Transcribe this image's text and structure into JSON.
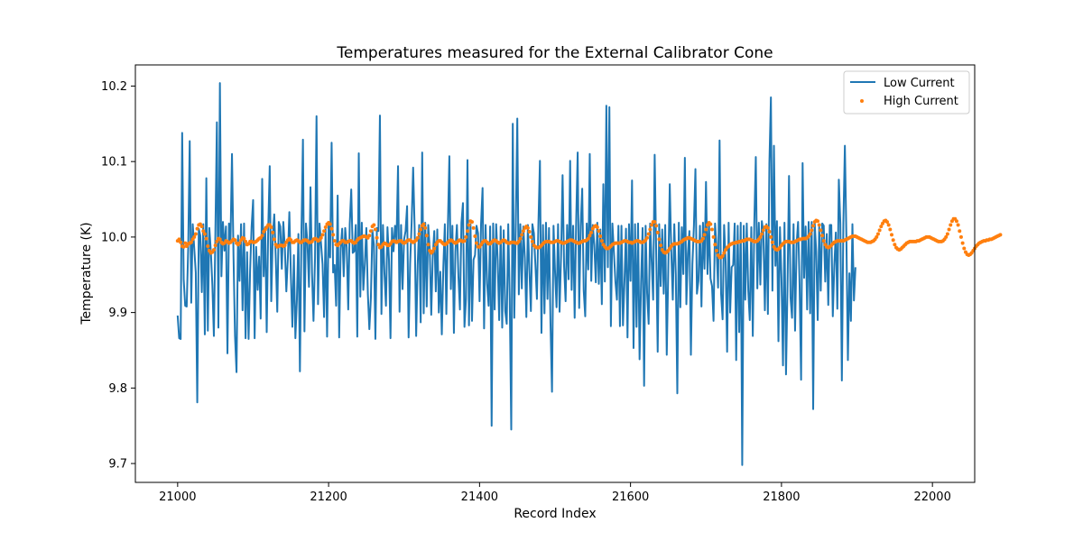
{
  "chart_data": {
    "type": "line",
    "title": "Temperatures measured for the External Calibrator Cone",
    "xlabel": "Record Index",
    "ylabel": "Temperature (K)",
    "xlim": [
      20944,
      22056
    ],
    "ylim": [
      9.675,
      10.228
    ],
    "xticks": [
      21000,
      21200,
      21400,
      21600,
      21800,
      22000
    ],
    "yticks": [
      9.7,
      9.8,
      9.9,
      10.0,
      10.1,
      10.2
    ],
    "xtick_labels": [
      "21000",
      "21200",
      "21400",
      "21600",
      "21800",
      "22000"
    ],
    "ytick_labels": [
      "9.7",
      "9.8",
      "9.9",
      "10.0",
      "10.1",
      "10.2"
    ],
    "legend": {
      "position": "top-right",
      "entries": [
        "Low Current",
        "High Current"
      ]
    },
    "colors": {
      "low": "#1f77b4",
      "high": "#ff7f0e"
    },
    "series": [
      {
        "name": "Low Current",
        "style": "line",
        "x_start": 21000,
        "x_step": 2,
        "values": [
          9.896,
          9.866,
          9.865,
          10.138,
          9.944,
          9.909,
          9.908,
          9.985,
          10.127,
          9.913,
          10.017,
          9.985,
          9.953,
          9.781,
          10.011,
          10.002,
          9.927,
          10.017,
          9.871,
          10.078,
          9.876,
          10.012,
          9.981,
          9.936,
          9.869,
          10.005,
          10.152,
          9.88,
          10.204,
          9.948,
          10.02,
          9.982,
          10.014,
          9.846,
          10.018,
          9.993,
          10.11,
          9.976,
          9.869,
          9.821,
          10.002,
          9.942,
          10.017,
          9.903,
          10.018,
          9.866,
          9.98,
          9.865,
          9.955,
          10.014,
          10.049,
          9.866,
          9.987,
          9.93,
          9.974,
          9.892,
          10.077,
          9.948,
          10.013,
          9.874,
          10.011,
          10.094,
          9.915,
          10.001,
          10.03,
          9.972,
          9.901,
          10.02,
          10.014,
          9.958,
          10.02,
          9.987,
          9.928,
          9.972,
          10.033,
          9.951,
          9.881,
          9.976,
          9.866,
          9.917,
          10.004,
          9.822,
          10.005,
          10.129,
          9.875,
          10.018,
          9.992,
          9.934,
          10.066,
          9.953,
          9.889,
          9.972,
          10.16,
          9.911,
          10.018,
          9.991,
          9.964,
          9.894,
          10.01,
          9.868,
          10.015,
          9.973,
          10.125,
          9.953,
          9.963,
          9.909,
          10.055,
          9.867,
          9.985,
          10.011,
          9.948,
          10.012,
          9.986,
          9.904,
          10.017,
          10.063,
          9.979,
          9.981,
          10.016,
          9.868,
          10.111,
          9.921,
          10.019,
          9.93,
          9.964,
          10.012,
          9.925,
          9.878,
          9.919,
          10.009,
          9.99,
          9.865,
          10.012,
          10.008,
          10.161,
          9.898,
          10.016,
          9.952,
          9.909,
          10.013,
          9.97,
          9.866,
          10.012,
          9.981,
          10.015,
          9.996,
          10.094,
          9.901,
          10.016,
          9.931,
          9.997,
          10.008,
          10.041,
          9.867,
          9.964,
          10.019,
          10.092,
          10.012,
          9.869,
          9.963,
          10.016,
          9.887,
          10.112,
          9.899,
          10.019,
          9.908,
          10.016,
          9.984,
          9.897,
          9.975,
          10.008,
          9.928,
          10.01,
          9.9,
          9.954,
          9.871,
          9.96,
          10.017,
          9.898,
          10.013,
          10.107,
          9.931,
          10.015,
          9.873,
          9.981,
          10.016,
          9.948,
          9.904,
          10.019,
          10.045,
          9.881,
          9.918,
          10.102,
          9.883,
          10.017,
          9.889,
          9.97,
          9.976,
          10.015,
          10.005,
          9.915,
          10.018,
          10.065,
          9.879,
          10.016,
          9.938,
          9.909,
          10.014,
          9.75,
          10.018,
          9.904,
          10.017,
          9.97,
          9.89,
          10.014,
          9.88,
          10.009,
          9.902,
          9.885,
          10.017,
          9.917,
          9.745,
          10.15,
          9.893,
          10.017,
          10.157,
          9.924,
          10.017,
          9.932,
          10.014,
          9.972,
          9.894,
          10.016,
          9.957,
          9.902,
          10.017,
          10.005,
          9.963,
          9.918,
          10.019,
          10.101,
          9.873,
          10.016,
          9.899,
          10.019,
          9.918,
          10.012,
          9.885,
          9.795,
          10.015,
          9.954,
          9.907,
          10.017,
          9.901,
          9.976,
          10.082,
          9.961,
          9.915,
          10.016,
          9.944,
          10.101,
          9.93,
          10.015,
          9.893,
          10.021,
          10.112,
          9.906,
          10.015,
          10.064,
          9.929,
          9.895,
          10.018,
          9.957,
          10.11,
          9.942,
          10.016,
          9.99,
          9.94,
          10.019,
          9.938,
          10.01,
          9.911,
          10.07,
          9.941,
          10.174,
          9.96,
          10.172,
          9.882,
          10.018,
          9.98,
          9.941,
          9.917,
          10.015,
          9.882,
          10.015,
          9.883,
          9.941,
          10.011,
          9.867,
          10.017,
          9.942,
          10.075,
          9.853,
          10.017,
          9.881,
          10.018,
          9.838,
          9.94,
          10.012,
          9.803,
          10.015,
          9.926,
          9.885,
          10.018,
          9.968,
          9.917,
          10.109,
          9.982,
          9.848,
          10.017,
          9.935,
          10.01,
          9.925,
          10.016,
          9.844,
          9.955,
          10.07,
          9.981,
          9.917,
          10.017,
          9.95,
          9.793,
          10.019,
          9.907,
          10.013,
          9.951,
          10.105,
          9.911,
          9.978,
          10.008,
          9.844,
          9.964,
          10.015,
          10.09,
          9.925,
          9.942,
          10.015,
          9.908,
          10.019,
          9.958,
          10.073,
          9.951,
          10.017,
          9.945,
          9.935,
          9.889,
          10.018,
          9.986,
          9.933,
          10.128,
          9.925,
          9.891,
          10.016,
          9.967,
          9.848,
          10.019,
          9.9,
          9.96,
          9.963,
          10.018,
          9.837,
          10.015,
          9.874,
          10.019,
          9.698,
          10.015,
          9.917,
          10.018,
          9.929,
          9.89,
          10.013,
          9.869,
          10.019,
          10.106,
          9.932,
          10.019,
          9.937,
          10.021,
          10.005,
          9.903,
          10.017,
          9.898,
          10.098,
          10.185,
          9.929,
          10.121,
          9.962,
          10.021,
          9.862,
          10.013,
          9.946,
          9.83,
          10.019,
          9.818,
          9.935,
          10.081,
          9.92,
          9.893,
          10.017,
          9.876,
          9.99,
          10.02,
          9.937,
          9.811,
          10.098,
          9.946,
          10.014,
          9.904,
          10.02,
          9.899,
          10.02,
          9.772,
          10.019,
          9.981,
          9.89,
          10.015,
          9.929,
          10.018,
          10.015,
          9.941,
          10.004,
          9.91,
          10.016,
          10.016,
          9.895,
          9.962,
          10.006,
          9.905,
          10.076,
          10.018,
          9.81,
          10.018,
          10.121,
          10.0,
          9.837,
          9.952,
          9.889,
          10.017,
          9.916,
          9.96
        ]
      },
      {
        "name": "High Current",
        "style": "scatter",
        "x_start": 21000,
        "x_step": 2,
        "values": [
          9.995,
          9.997,
          9.993,
          9.988,
          9.987,
          9.992,
          9.988,
          9.991,
          9.992,
          9.993,
          9.997,
          10.0,
          10.004,
          10.011,
          10.016,
          10.017,
          10.014,
          10.008,
          10.004,
          9.998,
          9.988,
          9.982,
          9.979,
          9.98,
          9.983,
          9.989,
          9.994,
          9.998,
          9.997,
          9.993,
          9.991,
          9.992,
          9.995,
          9.994,
          9.992,
          9.993,
          9.995,
          9.997,
          9.996,
          9.992,
          9.99,
          9.992,
          9.996,
          9.999,
          9.998,
          9.994,
          9.99,
          9.991,
          9.994,
          9.994,
          9.993,
          9.993,
          9.994,
          9.996,
          9.998,
          9.999,
          10.002,
          10.007,
          10.01,
          10.013,
          10.016,
          10.016,
          10.013,
          10.006,
          9.997,
          9.99,
          9.987,
          9.988,
          9.989,
          9.989,
          9.988,
          9.989,
          9.993,
          9.996,
          9.998,
          9.996,
          9.993,
          9.993,
          9.995,
          9.996,
          9.995,
          9.993,
          9.993,
          9.995,
          9.996,
          9.996,
          9.995,
          9.993,
          9.993,
          9.994,
          9.997,
          9.998,
          9.997,
          9.995,
          9.996,
          9.999,
          10.003,
          10.008,
          10.013,
          10.017,
          10.019,
          10.017,
          10.011,
          10.003,
          9.995,
          9.99,
          9.989,
          9.991,
          9.993,
          9.995,
          9.995,
          9.993,
          9.993,
          9.994,
          9.995,
          9.995,
          9.993,
          9.992,
          9.993,
          9.996,
          9.998,
          9.999,
          10.0,
          10.001,
          10.001,
          10.0,
          9.999,
          10.002,
          10.008,
          10.014,
          10.016,
          10.01,
          9.999,
          9.99,
          9.986,
          9.987,
          9.99,
          9.992,
          9.991,
          9.989,
          9.989,
          9.991,
          9.994,
          9.995,
          9.994,
          9.993,
          9.994,
          9.995,
          9.995,
          9.993,
          9.992,
          9.993,
          9.995,
          9.996,
          9.996,
          9.994,
          9.993,
          9.994,
          9.996,
          9.999,
          10.004,
          10.01,
          10.015,
          10.017,
          10.012,
          10.002,
          9.99,
          9.982,
          9.979,
          9.981,
          9.985,
          9.99,
          9.993,
          9.995,
          9.995,
          9.993,
          9.991,
          9.99,
          9.991,
          9.993,
          9.995,
          9.996,
          9.995,
          9.993,
          9.992,
          9.993,
          9.995,
          9.996,
          9.995,
          9.994,
          9.995,
          10.0,
          10.008,
          10.016,
          10.021,
          10.02,
          10.012,
          10.001,
          9.992,
          9.987,
          9.987,
          9.99,
          9.993,
          9.995,
          9.995,
          9.993,
          9.991,
          9.991,
          9.993,
          9.995,
          9.996,
          9.995,
          9.993,
          9.992,
          9.993,
          9.995,
          9.996,
          9.995,
          9.993,
          9.992,
          9.992,
          9.993,
          9.993,
          9.993,
          9.992,
          9.992,
          9.994,
          9.998,
          10.003,
          10.008,
          10.012,
          10.014,
          10.012,
          10.007,
          10.0,
          9.994,
          9.989,
          9.987,
          9.986,
          9.986,
          9.987,
          9.989,
          9.991,
          9.993,
          9.994,
          9.994,
          9.994,
          9.993,
          9.993,
          9.993,
          9.994,
          9.995,
          9.995,
          9.994,
          9.993,
          9.992,
          9.992,
          9.993,
          9.994,
          9.995,
          9.996,
          9.996,
          9.995,
          9.994,
          9.993,
          9.992,
          9.992,
          9.993,
          9.994,
          9.995,
          9.995,
          9.996,
          9.998,
          10.002,
          10.006,
          10.011,
          10.014,
          10.015,
          10.013,
          10.008,
          10.001,
          9.995,
          9.99,
          9.987,
          9.985,
          9.985,
          9.986,
          9.988,
          9.99,
          9.991,
          9.992,
          9.992,
          9.992,
          9.992,
          9.993,
          9.994,
          9.995,
          9.995,
          9.994,
          9.993,
          9.993,
          9.992,
          9.993,
          9.994,
          9.995,
          9.995,
          9.994,
          9.993,
          9.993,
          9.994,
          9.996,
          9.999,
          10.004,
          10.01,
          10.016,
          10.02,
          10.02,
          10.015,
          10.006,
          9.997,
          9.989,
          9.983,
          9.98,
          9.979,
          9.98,
          9.982,
          9.985,
          9.988,
          9.99,
          9.991,
          9.991,
          9.991,
          9.992,
          9.993,
          9.994,
          9.996,
          9.997,
          9.998,
          9.999,
          9.999,
          9.998,
          9.997,
          9.996,
          9.995,
          9.994,
          9.994,
          9.994,
          9.995,
          9.998,
          10.003,
          10.01,
          10.016,
          10.019,
          10.017,
          10.01,
          10.0,
          9.99,
          9.982,
          9.976,
          9.973,
          9.973,
          9.975,
          9.979,
          9.983,
          9.986,
          9.988,
          9.99,
          9.991,
          9.992,
          9.992,
          9.993,
          9.993,
          9.994,
          9.994,
          9.995,
          9.995,
          9.996,
          9.997,
          9.997,
          9.997,
          9.996,
          9.995,
          9.994,
          9.994,
          9.995,
          9.997,
          10.0,
          10.004,
          10.009,
          10.013,
          10.014,
          10.012,
          10.007,
          10.0,
          9.993,
          9.987,
          9.984,
          9.983,
          9.984,
          9.986,
          9.989,
          9.991,
          9.993,
          9.994,
          9.994,
          9.994,
          9.993,
          9.993,
          9.993,
          9.994,
          9.995,
          9.996,
          9.997,
          9.997,
          9.998,
          9.998,
          9.998,
          9.999,
          10.001,
          10.004,
          10.009,
          10.015,
          10.02,
          10.022,
          10.021,
          10.016,
          10.009,
          10.002,
          9.995,
          9.99,
          9.987,
          9.986,
          9.987,
          9.989,
          9.991,
          9.993,
          9.994,
          9.995,
          9.995,
          9.995,
          9.995,
          9.995,
          9.996,
          9.997,
          9.998,
          9.999,
          10.0,
          10.001,
          10.001,
          10.001,
          10.0,
          9.999,
          9.998,
          9.997,
          9.996,
          9.995,
          9.994,
          9.993,
          9.993,
          9.993,
          9.994,
          9.995,
          9.997,
          10.0,
          10.004,
          10.009,
          10.014,
          10.018,
          10.021,
          10.022,
          10.02,
          10.016,
          10.01,
          10.003,
          9.996,
          9.99,
          9.986,
          9.984,
          9.983,
          9.984,
          9.986,
          9.988,
          9.99,
          9.992,
          9.993,
          9.994,
          9.994,
          9.994,
          9.994,
          9.994,
          9.995,
          9.995,
          9.996,
          9.997,
          9.998,
          9.999,
          10.0,
          10.0,
          10.0,
          9.999,
          9.998,
          9.997,
          9.996,
          9.995,
          9.994,
          9.994,
          9.994,
          9.995,
          9.997,
          10.0,
          10.004,
          10.01,
          10.016,
          10.021,
          10.024,
          10.024,
          10.021,
          10.016,
          10.008,
          10.0,
          9.992,
          9.985,
          9.98,
          9.977,
          9.976,
          9.977,
          9.979,
          9.982,
          9.985,
          9.988,
          9.99,
          9.992,
          9.993,
          9.994,
          9.995,
          9.995,
          9.996,
          9.996,
          9.997,
          9.997,
          9.998,
          9.999,
          10.0,
          10.001,
          10.002,
          10.003
        ]
      }
    ]
  }
}
